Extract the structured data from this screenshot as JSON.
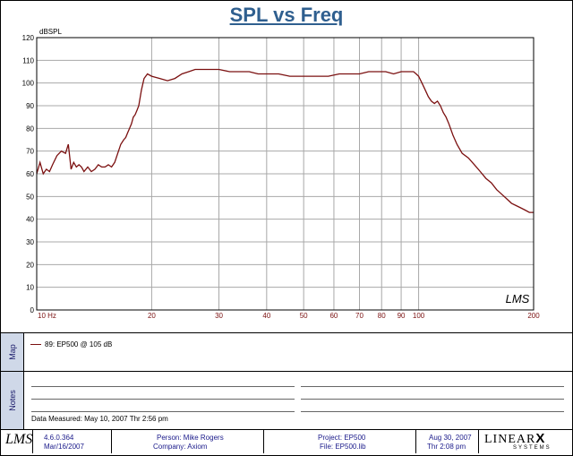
{
  "chart_data": {
    "type": "line",
    "title": "SPL vs Freq",
    "ylabel": "dBSPL",
    "xscale": "log",
    "xlim": [
      10,
      200
    ],
    "ylim": [
      0,
      120
    ],
    "grid": true,
    "x_ticks": [
      10,
      20,
      30,
      40,
      50,
      60,
      70,
      80,
      90,
      100,
      200
    ],
    "x_tick_labels": [
      "10 Hz",
      "20",
      "30",
      "40",
      "50",
      "60",
      "70",
      "80",
      "90",
      "100",
      "200"
    ],
    "y_ticks": [
      0,
      10,
      20,
      30,
      40,
      50,
      60,
      70,
      80,
      90,
      100,
      110,
      120
    ],
    "series": [
      {
        "name": "89: EP500 @ 105 dB",
        "color": "#7b1010",
        "x": [
          10,
          10.2,
          10.4,
          10.6,
          10.8,
          11,
          11.3,
          11.6,
          11.9,
          12.1,
          12.3,
          12.5,
          12.7,
          12.9,
          13.1,
          13.3,
          13.6,
          13.9,
          14.2,
          14.5,
          14.8,
          15.1,
          15.4,
          15.7,
          16,
          16.3,
          16.6,
          16.9,
          17.1,
          17.3,
          17.5,
          17.7,
          17.9,
          18.1,
          18.3,
          18.5,
          18.8,
          19.1,
          19.5,
          20,
          21,
          22,
          23,
          24,
          25,
          26,
          27,
          28,
          29,
          30,
          32,
          34,
          36,
          38,
          40,
          43,
          46,
          50,
          54,
          58,
          62,
          66,
          70,
          74,
          78,
          82,
          86,
          90,
          93,
          95,
          97,
          98.5,
          100,
          102,
          104,
          106,
          108,
          110,
          112,
          114,
          116,
          118,
          120,
          123,
          126,
          130,
          135,
          140,
          145,
          150,
          155,
          160,
          165,
          170,
          175,
          180,
          185,
          190,
          195,
          200
        ],
        "y": [
          60,
          65,
          60,
          62,
          61,
          64,
          68,
          70,
          69,
          73,
          62,
          65,
          63,
          64,
          63,
          61,
          63,
          61,
          62,
          64,
          63,
          63,
          64,
          63,
          65,
          69,
          73,
          75,
          76,
          78,
          80,
          82,
          85,
          86,
          88,
          90,
          97,
          102,
          104,
          103,
          102,
          101,
          102,
          104,
          105,
          106,
          106,
          106,
          106,
          106,
          105,
          105,
          105,
          104,
          104,
          104,
          103,
          103,
          103,
          103,
          104,
          104,
          104,
          105,
          105,
          105,
          104,
          105,
          105,
          105,
          105,
          104,
          103,
          100,
          97,
          94,
          92,
          91,
          92,
          90,
          87,
          85,
          82,
          77,
          73,
          69,
          67,
          64,
          61,
          58,
          56,
          53,
          51,
          49,
          47,
          46,
          45,
          44,
          43,
          43
        ]
      }
    ]
  },
  "map": {
    "tab_label": "Map",
    "legend_label": "89: EP500 @ 105 dB"
  },
  "notes": {
    "tab_label": "Notes",
    "date_measured": "Data Measured: May 10, 2007  Thr  2:56 pm"
  },
  "footer": {
    "logo": "LMS",
    "version": "4.6.0.364",
    "version_date": "Mar/16/2007",
    "person": "Person: Mike Rogers",
    "company": "Company: Axiom",
    "project": "Project: EP500",
    "file": "File: EP500.lib",
    "date": "Aug 30, 2007",
    "time": "Thr  2:08 pm",
    "brand": "LINEAR",
    "brand_x": "X",
    "brand_sub": "SYSTEMS"
  },
  "colors": {
    "title": "#2f5f8f",
    "grid": "#a8a8a8",
    "tick_label": "#7b1010",
    "curve": "#7b1010",
    "tab_bg": "#cfd8e8"
  }
}
